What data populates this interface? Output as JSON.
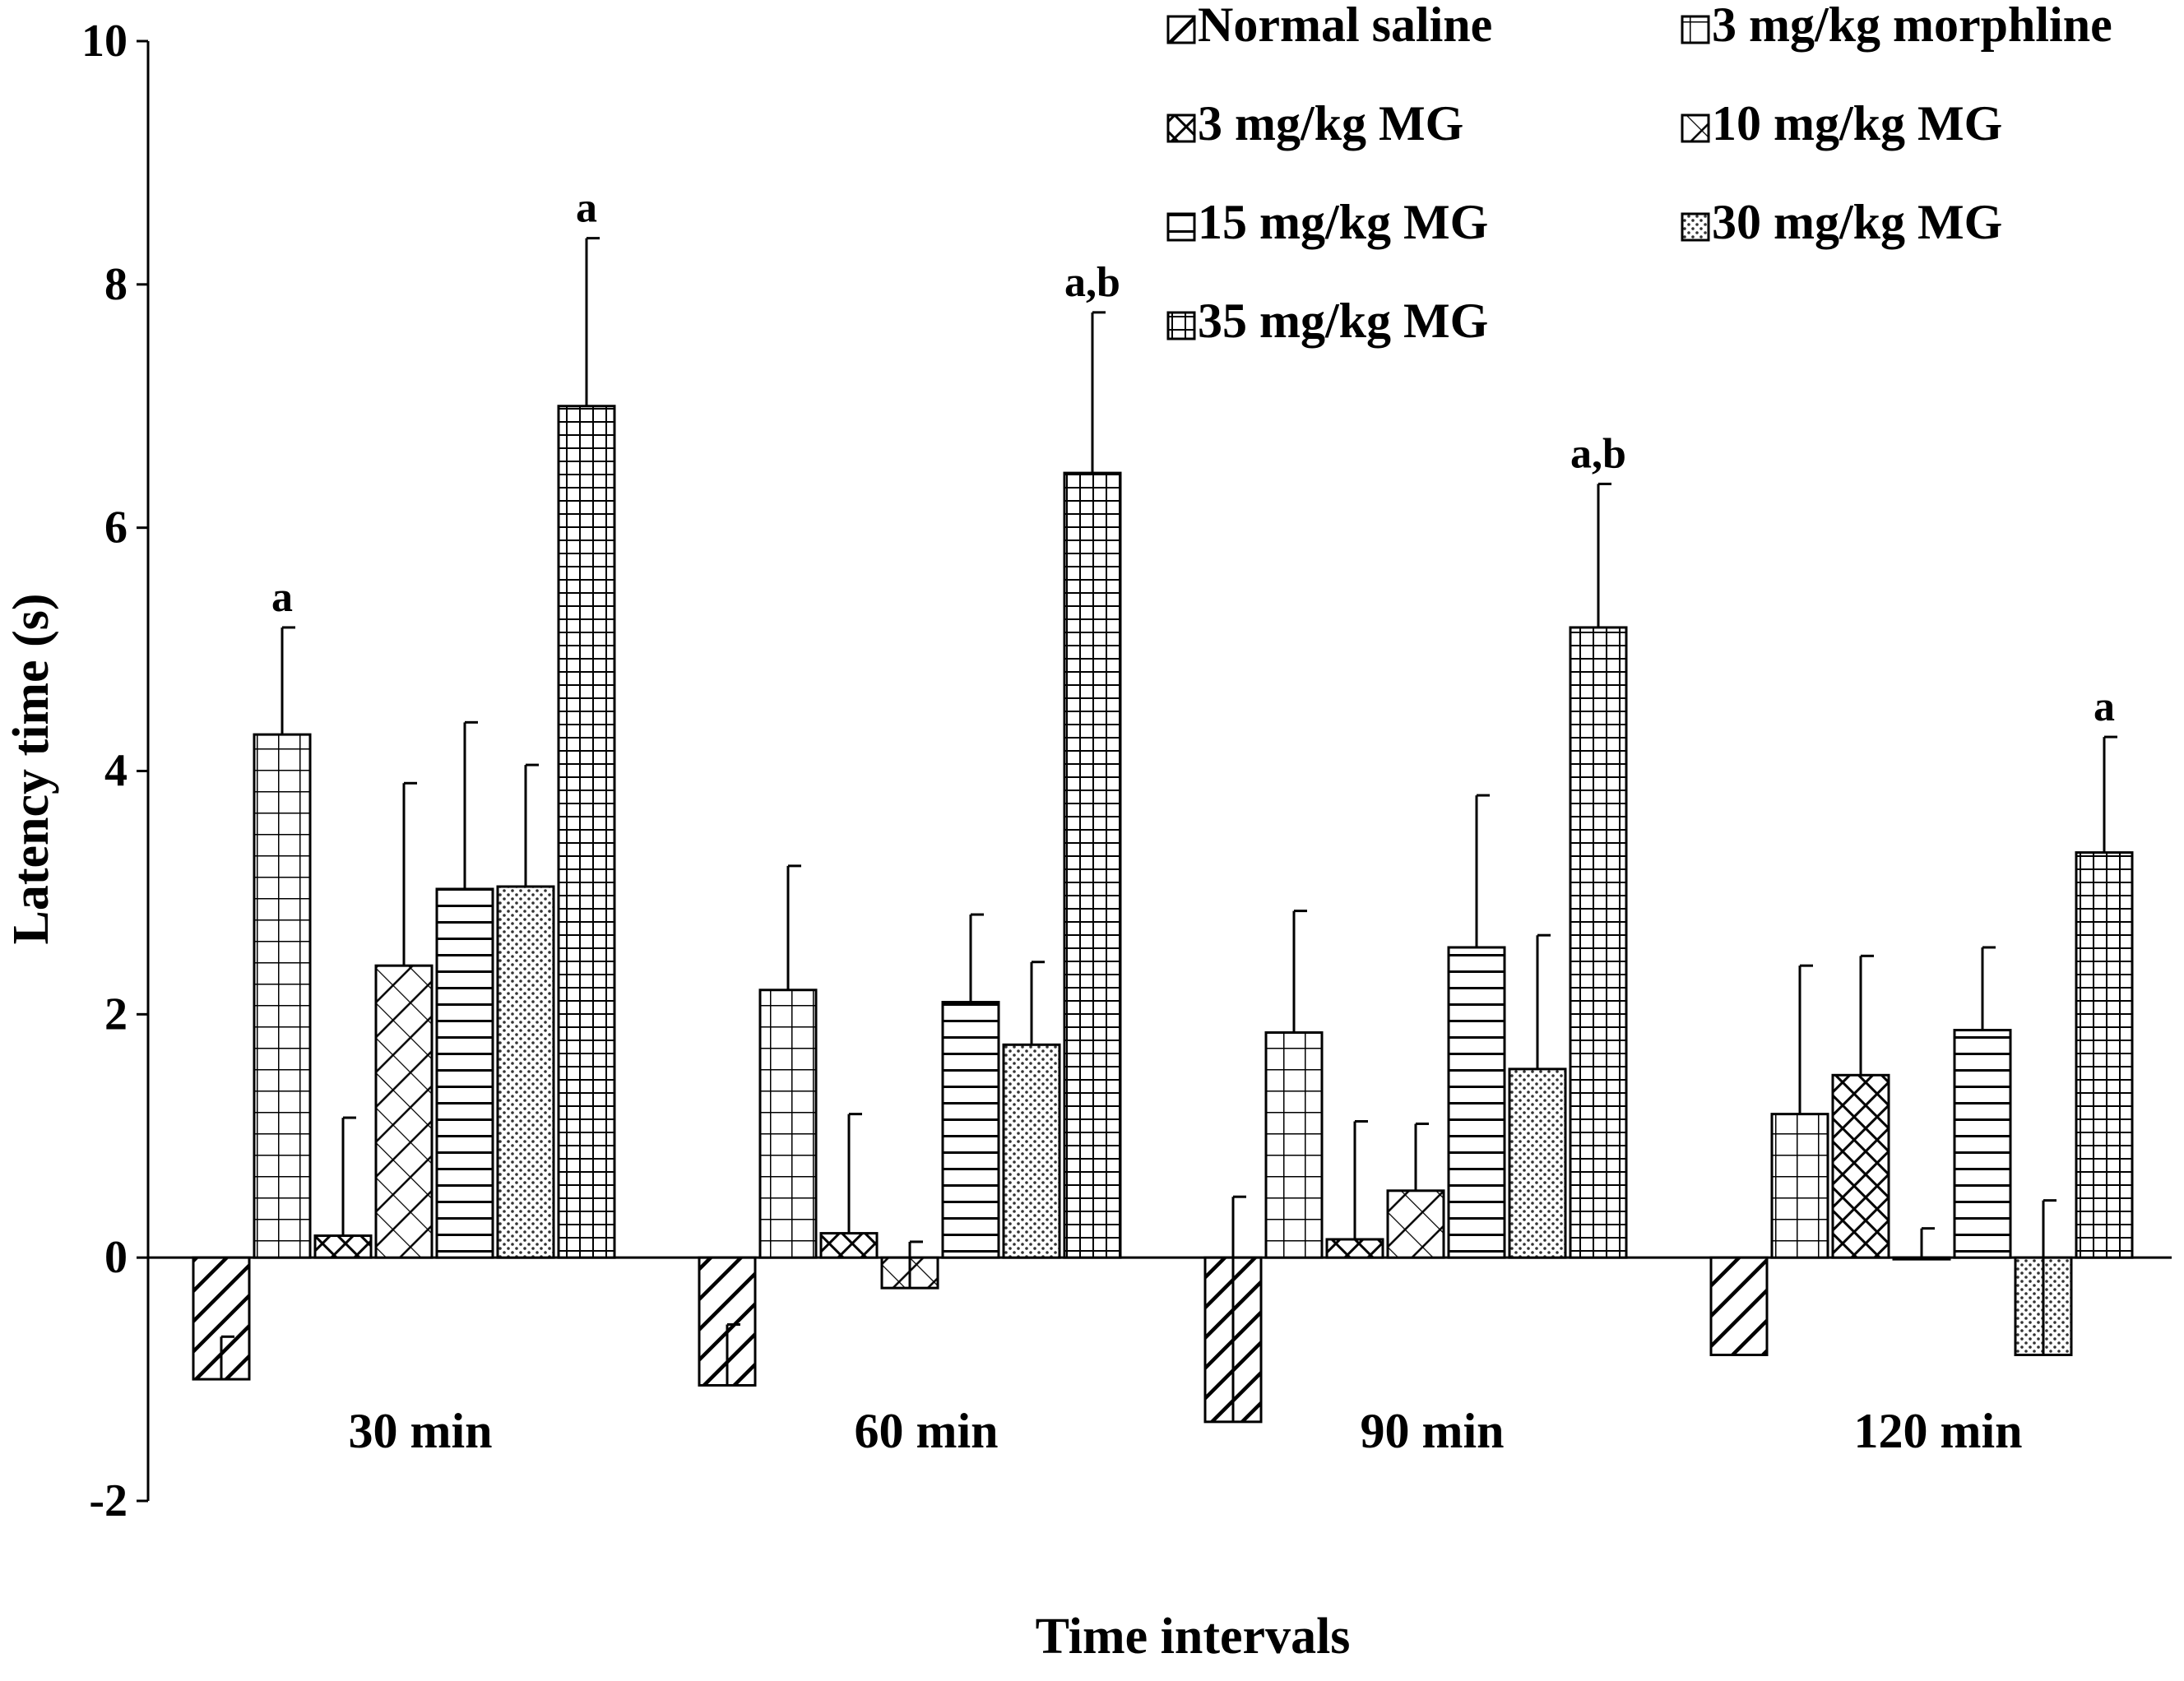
{
  "chart_data": {
    "type": "bar",
    "xlabel": "Time intervals",
    "ylabel": "Latency time (s)",
    "ylim": [
      -2,
      10
    ],
    "yticks": [
      "-2",
      "0",
      "2",
      "4",
      "6",
      "8",
      "10"
    ],
    "categories": [
      "30 min",
      "60 min",
      "90 min",
      "120 min"
    ],
    "legend_position": "top-right",
    "series": [
      {
        "name": "Normal saline",
        "pattern": "hatch-diag",
        "values": [
          -1.0,
          -1.05,
          -1.35,
          -0.8
        ],
        "errors": [
          0.35,
          0.5,
          1.85,
          0.0
        ],
        "labels": [
          "",
          "",
          "",
          ""
        ]
      },
      {
        "name": "3 mg/kg morphline",
        "pattern": "grid",
        "values": [
          4.3,
          2.2,
          1.85,
          1.18
        ],
        "errors": [
          0.88,
          1.02,
          1.0,
          1.22
        ],
        "labels": [
          "a",
          "",
          "",
          ""
        ]
      },
      {
        "name": "3 mg/kg MG",
        "pattern": "crosshatch",
        "values": [
          0.18,
          0.2,
          0.15,
          1.5
        ],
        "errors": [
          0.97,
          0.98,
          0.97,
          0.98
        ],
        "labels": [
          "",
          "",
          "",
          ""
        ]
      },
      {
        "name": "10 mg/kg MG",
        "pattern": "zigzag",
        "values": [
          2.4,
          -0.25,
          0.55,
          0.0
        ],
        "errors": [
          1.5,
          0.38,
          0.55,
          0.24
        ],
        "labels": [
          "",
          "",
          "",
          ""
        ]
      },
      {
        "name": "15 mg/kg MG",
        "pattern": "horizontal",
        "values": [
          3.03,
          2.1,
          2.55,
          1.87
        ],
        "errors": [
          1.37,
          0.72,
          1.25,
          0.68
        ],
        "labels": [
          "",
          "",
          "",
          ""
        ]
      },
      {
        "name": "30 mg/kg MG",
        "pattern": "dots",
        "values": [
          3.05,
          1.75,
          1.55,
          -0.8
        ],
        "errors": [
          1.0,
          0.68,
          1.1,
          1.27
        ],
        "labels": [
          "",
          "",
          "",
          ""
        ]
      },
      {
        "name": "35 mg/kg MG",
        "pattern": "dense-grid",
        "values": [
          7.0,
          6.45,
          5.18,
          3.33
        ],
        "errors": [
          1.38,
          1.32,
          1.18,
          0.95
        ],
        "labels": [
          "a",
          "a,b",
          "a,b",
          "a"
        ]
      }
    ]
  }
}
